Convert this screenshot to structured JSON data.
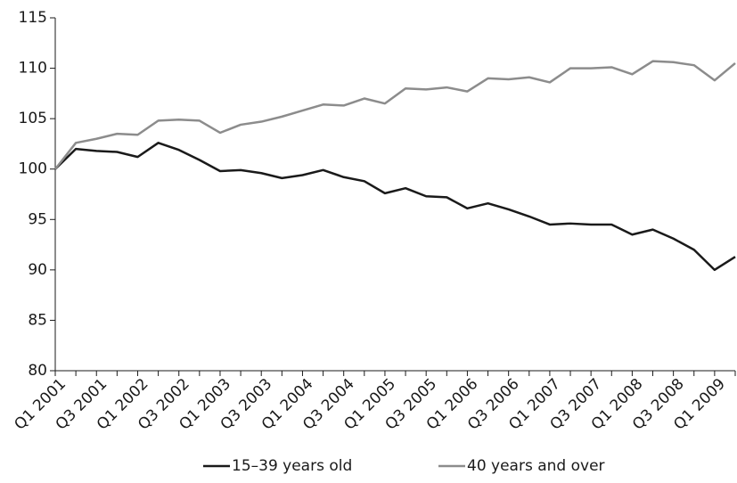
{
  "chart_data": {
    "type": "line",
    "categories": [
      "Q1 2001",
      null,
      "Q3 2001",
      null,
      "Q1 2002",
      null,
      "Q3 2002",
      null,
      "Q1 2003",
      null,
      "Q3 2003",
      null,
      "Q1 2004",
      null,
      "Q3 2004",
      null,
      "Q1 2005",
      null,
      "Q3 2005",
      null,
      "Q1 2006",
      null,
      "Q3 2006",
      null,
      "Q1 2007",
      null,
      "Q3 2007",
      null,
      "Q1 2008",
      null,
      "Q3 2008",
      null,
      "Q1 2009",
      null
    ],
    "series": [
      {
        "name": "15–39 years old",
        "color": "#1a1a1a",
        "values": [
          100,
          102.0,
          101.8,
          101.7,
          101.2,
          102.6,
          101.9,
          100.9,
          99.8,
          99.9,
          99.6,
          99.1,
          99.4,
          99.9,
          99.2,
          98.8,
          97.6,
          98.1,
          97.3,
          97.2,
          96.1,
          96.6,
          96.0,
          95.3,
          94.5,
          94.6,
          94.5,
          94.5,
          93.5,
          94.0,
          93.1,
          92.0,
          90.0,
          91.3
        ]
      },
      {
        "name": "40 years and over",
        "color": "#8c8c8c",
        "values": [
          100,
          102.6,
          103.0,
          103.5,
          103.4,
          104.8,
          104.9,
          104.8,
          103.6,
          104.4,
          104.7,
          105.2,
          105.8,
          106.4,
          106.3,
          107.0,
          106.5,
          108.0,
          107.9,
          108.1,
          107.7,
          109.0,
          108.9,
          109.1,
          108.6,
          110.0,
          110.0,
          110.1,
          109.4,
          110.7,
          110.6,
          110.3,
          108.8,
          110.5
        ]
      }
    ],
    "ylim": [
      80,
      115
    ],
    "yticks": [
      80,
      85,
      90,
      95,
      100,
      105,
      110,
      115
    ],
    "grid": false,
    "legend": "bottom"
  }
}
